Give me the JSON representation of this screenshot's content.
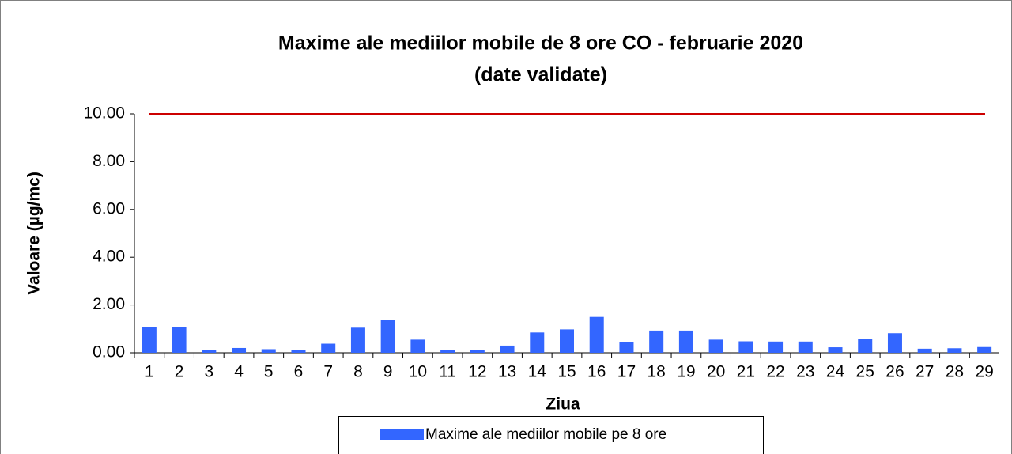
{
  "chart_data": {
    "type": "bar",
    "title": "Maxime ale mediilor mobile de 8 ore CO -  februarie 2020",
    "subtitle": "(date validate)",
    "x_label": "Ziua",
    "y_label": "Valoare (µg/mc)",
    "categories": [
      "1",
      "2",
      "3",
      "4",
      "5",
      "6",
      "7",
      "8",
      "9",
      "10",
      "11",
      "12",
      "13",
      "14",
      "15",
      "16",
      "17",
      "18",
      "19",
      "20",
      "21",
      "22",
      "23",
      "24",
      "25",
      "26",
      "27",
      "28",
      "29"
    ],
    "series": [
      {
        "name": "Maxime ale mediilor mobile pe 8 ore",
        "color": "#3366ff",
        "values": [
          1.08,
          1.07,
          0.12,
          0.2,
          0.15,
          0.12,
          0.38,
          1.05,
          1.38,
          0.55,
          0.13,
          0.13,
          0.3,
          0.85,
          0.98,
          1.5,
          0.45,
          0.93,
          0.93,
          0.55,
          0.48,
          0.47,
          0.47,
          0.23,
          0.57,
          0.82,
          0.17,
          0.19,
          0.24
        ]
      }
    ],
    "reference_line": {
      "value": 10,
      "color": "#cc0000"
    },
    "ylim": [
      0,
      10
    ],
    "yticks": [
      {
        "value": 0,
        "label": "0.00"
      },
      {
        "value": 2,
        "label": "2.00"
      },
      {
        "value": 4,
        "label": "4.00"
      },
      {
        "value": 6,
        "label": "6.00"
      },
      {
        "value": 8,
        "label": "8.00"
      },
      {
        "value": 10,
        "label": "10.00"
      }
    ],
    "legend": "bottom"
  }
}
